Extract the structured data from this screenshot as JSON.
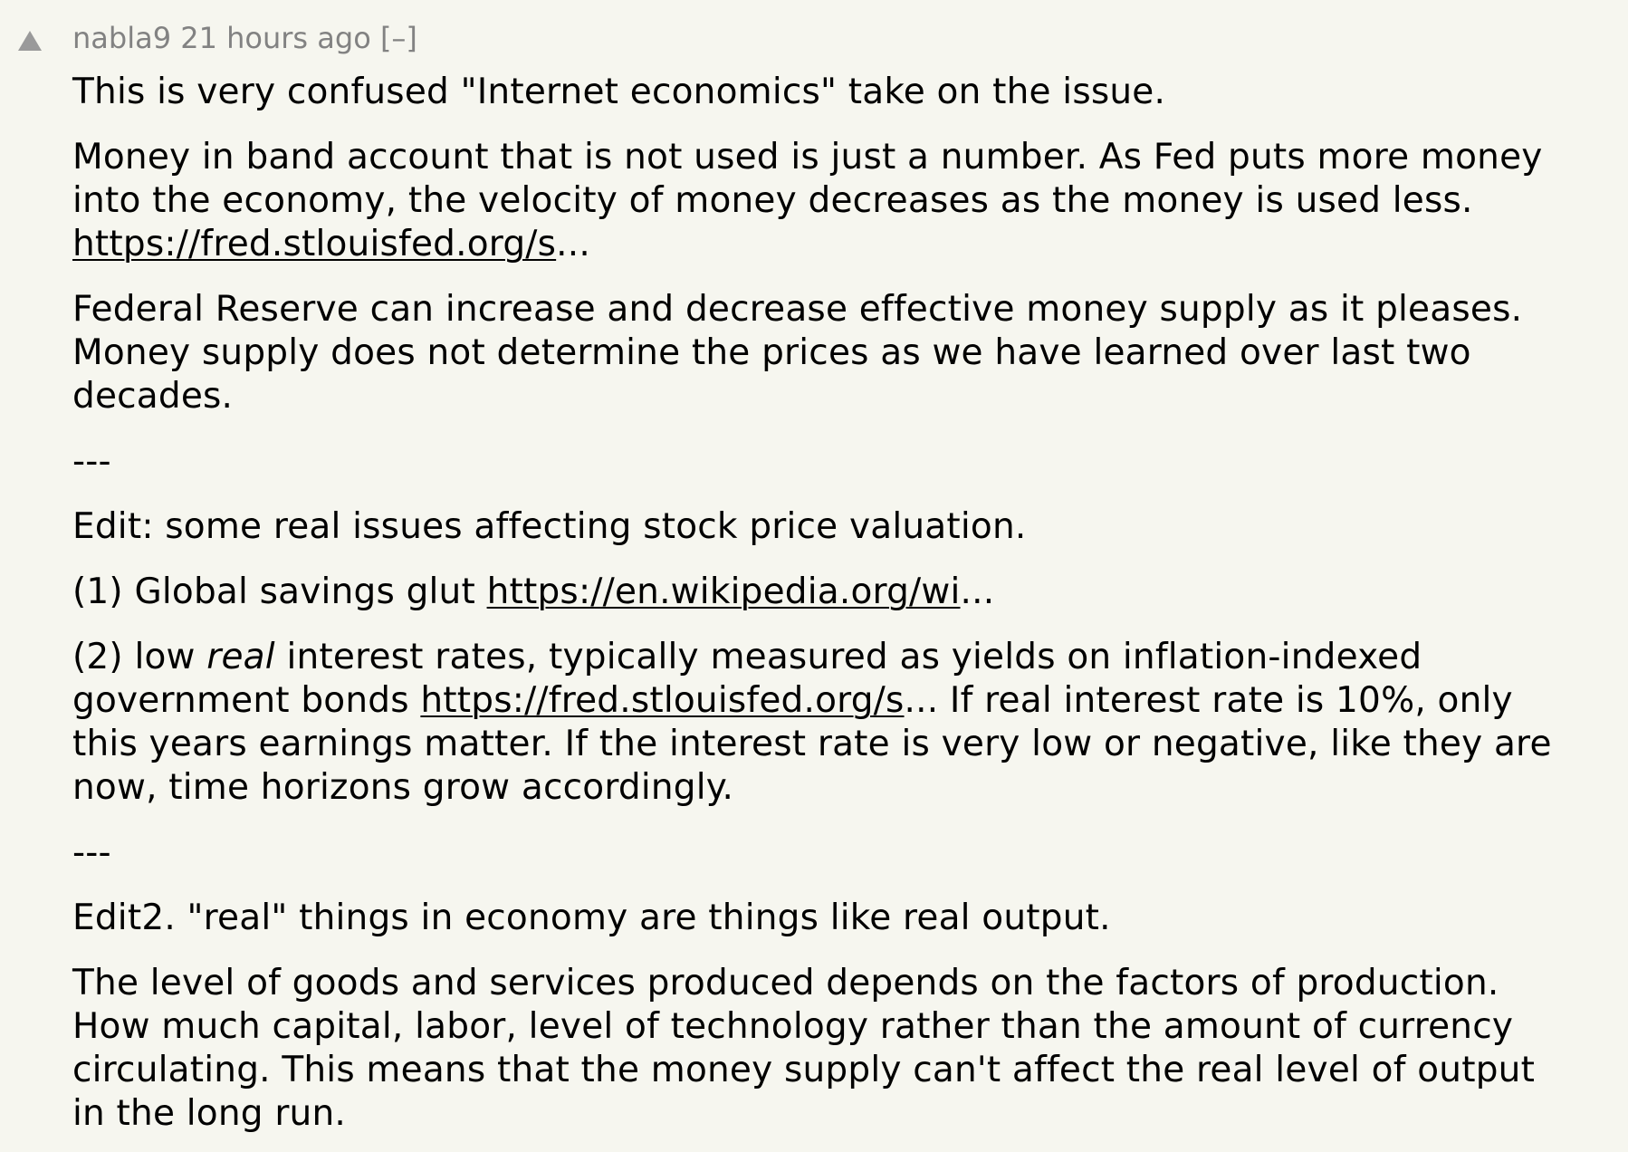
{
  "comment": {
    "user": "nabla9",
    "age": "21 hours ago",
    "toggle": "[–]",
    "upvote_icon": "upvote-triangle-icon",
    "colors": {
      "background": "#f6f6ef",
      "meta": "#828282",
      "text": "#000000"
    },
    "paragraphs": {
      "p1": "This is very confused \"Internet economics\" take on the issue.",
      "p2_text": "Money in band account that is not used is just a number. As Fed puts more money into the economy, the velocity of money decreases as the money is used less.",
      "p2_link": "https://fred.stlouisfed.org/s",
      "p2_ellipsis": "...",
      "p3": "Federal Reserve can increase and decrease effective money supply as it pleases. Money supply does not determine the prices as we have learned over last two decades.",
      "sep1": "---",
      "p4": "Edit: some real issues affecting stock price valuation.",
      "p5_text": "(1) Global savings glut",
      "p5_link": "https://en.wikipedia.org/wi",
      "p5_ellipsis": "...",
      "p6_pre": "(2) low",
      "p6_em": "real",
      "p6_mid": "interest rates, typically measured as yields on inflation-indexed government bonds",
      "p6_link": "https://fred.stlouisfed.org/s",
      "p6_ellipsis": "...",
      "p6_post": "If real interest rate is 10%, only this years earnings matter. If the interest rate is very low or negative, like they are now, time horizons grow accordingly.",
      "sep2": "---",
      "p7": "Edit2. \"real\" things in economy are things like real output.",
      "p8": "The level of goods and services produced depends on the factors of production. How much capital, labor, level of technology rather than the amount of currency circulating. This means that the money supply can't affect the real level of output in the long run."
    }
  }
}
